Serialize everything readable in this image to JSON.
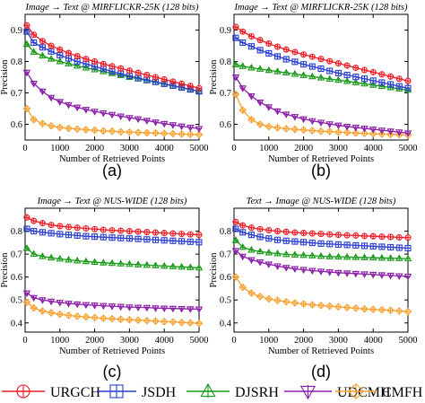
{
  "colors": {
    "URGCH": "#ee1c25",
    "JSDH": "#2b3fd1",
    "DJSRH": "#1a9a1a",
    "UDCMH": "#8b1fa8",
    "CMFH": "#f7a233"
  },
  "legend": [
    {
      "name": "URGCH",
      "marker": "circle-plus"
    },
    {
      "name": "JSDH",
      "marker": "square-plus"
    },
    {
      "name": "DJSRH",
      "marker": "triangle-plus"
    },
    {
      "name": "UDCMH",
      "marker": "inverted-triangle-plus"
    },
    {
      "name": "CMFH",
      "marker": "diamond-plus"
    }
  ],
  "chart_data": [
    {
      "type": "line",
      "panel": "(a)",
      "title": "Image → Text @ MIRFLICKR-25K (128 bits)",
      "xlabel": "Number of Retrieved Points",
      "ylabel": "Precision",
      "xlim": [
        0,
        5000
      ],
      "ylim": [
        0.55,
        0.95
      ],
      "yticks": [
        0.6,
        0.7,
        0.8,
        0.9
      ],
      "xticks": [
        0,
        1000,
        2000,
        3000,
        4000,
        5000
      ],
      "x": [
        50,
        250,
        500,
        750,
        1000,
        1250,
        1500,
        1750,
        2000,
        2250,
        2500,
        2750,
        3000,
        3250,
        3500,
        3750,
        4000,
        4250,
        4500,
        4750,
        5000
      ],
      "series": [
        {
          "name": "URGCH",
          "values": [
            0.915,
            0.885,
            0.865,
            0.85,
            0.838,
            0.827,
            0.817,
            0.808,
            0.8,
            0.792,
            0.785,
            0.778,
            0.771,
            0.764,
            0.757,
            0.75,
            0.743,
            0.736,
            0.729,
            0.722,
            0.715
          ]
        },
        {
          "name": "JSDH",
          "values": [
            0.895,
            0.86,
            0.845,
            0.832,
            0.82,
            0.81,
            0.8,
            0.792,
            0.784,
            0.776,
            0.768,
            0.761,
            0.754,
            0.747,
            0.741,
            0.735,
            0.729,
            0.723,
            0.717,
            0.711,
            0.705
          ]
        },
        {
          "name": "DJSRH",
          "values": [
            0.855,
            0.83,
            0.818,
            0.808,
            0.8,
            0.793,
            0.786,
            0.78,
            0.774,
            0.768,
            0.762,
            0.756,
            0.75,
            0.745,
            0.739,
            0.734,
            0.728,
            0.722,
            0.717,
            0.711,
            0.705
          ]
        },
        {
          "name": "UDCMH",
          "values": [
            0.765,
            0.73,
            0.705,
            0.685,
            0.672,
            0.662,
            0.654,
            0.647,
            0.641,
            0.636,
            0.631,
            0.626,
            0.621,
            0.617,
            0.612,
            0.607,
            0.602,
            0.598,
            0.594,
            0.59,
            0.586
          ]
        },
        {
          "name": "CMFH",
          "values": [
            0.65,
            0.615,
            0.602,
            0.595,
            0.59,
            0.587,
            0.585,
            0.583,
            0.581,
            0.579,
            0.578,
            0.576,
            0.575,
            0.574,
            0.573,
            0.572,
            0.571,
            0.57,
            0.569,
            0.568,
            0.567
          ]
        }
      ]
    },
    {
      "type": "line",
      "panel": "(b)",
      "title": "Image → Text @ MIRFLICKR-25K (128 bits)",
      "xlabel": "Number of Retrieved Points",
      "ylabel": "Precision",
      "xlim": [
        0,
        5000
      ],
      "ylim": [
        0.55,
        0.95
      ],
      "yticks": [
        0.6,
        0.7,
        0.8,
        0.9
      ],
      "xticks": [
        0,
        1000,
        2000,
        3000,
        4000,
        5000
      ],
      "x": [
        50,
        250,
        500,
        750,
        1000,
        1250,
        1500,
        1750,
        2000,
        2250,
        2500,
        2750,
        3000,
        3250,
        3500,
        3750,
        4000,
        4250,
        4500,
        4750,
        5000
      ],
      "series": [
        {
          "name": "URGCH",
          "values": [
            0.91,
            0.895,
            0.88,
            0.868,
            0.857,
            0.847,
            0.838,
            0.83,
            0.822,
            0.815,
            0.808,
            0.801,
            0.794,
            0.787,
            0.78,
            0.773,
            0.766,
            0.759,
            0.752,
            0.745,
            0.738
          ]
        },
        {
          "name": "JSDH",
          "values": [
            0.875,
            0.86,
            0.848,
            0.836,
            0.826,
            0.816,
            0.807,
            0.799,
            0.791,
            0.784,
            0.777,
            0.77,
            0.763,
            0.757,
            0.751,
            0.745,
            0.739,
            0.733,
            0.727,
            0.721,
            0.715
          ]
        },
        {
          "name": "DJSRH",
          "values": [
            0.79,
            0.785,
            0.78,
            0.776,
            0.772,
            0.768,
            0.764,
            0.76,
            0.756,
            0.752,
            0.748,
            0.744,
            0.741,
            0.737,
            0.733,
            0.729,
            0.725,
            0.721,
            0.717,
            0.713,
            0.709
          ]
        },
        {
          "name": "UDCMH",
          "values": [
            0.75,
            0.715,
            0.69,
            0.67,
            0.655,
            0.642,
            0.632,
            0.624,
            0.617,
            0.611,
            0.606,
            0.601,
            0.597,
            0.593,
            0.59,
            0.587,
            0.584,
            0.581,
            0.578,
            0.575,
            0.572
          ]
        },
        {
          "name": "CMFH",
          "values": [
            0.695,
            0.645,
            0.615,
            0.6,
            0.593,
            0.589,
            0.586,
            0.584,
            0.582,
            0.58,
            0.578,
            0.577,
            0.575,
            0.574,
            0.572,
            0.571,
            0.57,
            0.569,
            0.568,
            0.567,
            0.566
          ]
        }
      ]
    },
    {
      "type": "line",
      "panel": "(c)",
      "title": "Image → Text @ NUS-WIDE (128 bits)",
      "xlabel": "Number of Retrieved Points",
      "ylabel": "Precision",
      "xlim": [
        0,
        5000
      ],
      "ylim": [
        0.36,
        0.9
      ],
      "yticks": [
        0.4,
        0.5,
        0.6,
        0.7,
        0.8
      ],
      "xticks": [
        0,
        1000,
        2000,
        3000,
        4000,
        5000
      ],
      "x": [
        50,
        250,
        500,
        750,
        1000,
        1250,
        1500,
        1750,
        2000,
        2250,
        2500,
        2750,
        3000,
        3250,
        3500,
        3750,
        4000,
        4250,
        4500,
        4750,
        5000
      ],
      "series": [
        {
          "name": "URGCH",
          "values": [
            0.86,
            0.845,
            0.835,
            0.827,
            0.822,
            0.818,
            0.815,
            0.812,
            0.809,
            0.806,
            0.804,
            0.802,
            0.8,
            0.798,
            0.796,
            0.794,
            0.792,
            0.79,
            0.788,
            0.786,
            0.784
          ]
        },
        {
          "name": "JSDH",
          "values": [
            0.81,
            0.8,
            0.795,
            0.791,
            0.787,
            0.784,
            0.781,
            0.778,
            0.776,
            0.774,
            0.772,
            0.77,
            0.768,
            0.766,
            0.764,
            0.762,
            0.76,
            0.758,
            0.756,
            0.754,
            0.752
          ]
        },
        {
          "name": "DJSRH",
          "values": [
            0.725,
            0.7,
            0.69,
            0.684,
            0.679,
            0.675,
            0.671,
            0.668,
            0.665,
            0.662,
            0.66,
            0.658,
            0.656,
            0.654,
            0.652,
            0.65,
            0.648,
            0.646,
            0.644,
            0.642,
            0.64
          ]
        },
        {
          "name": "UDCMH",
          "values": [
            0.53,
            0.51,
            0.5,
            0.494,
            0.489,
            0.485,
            0.482,
            0.479,
            0.477,
            0.475,
            0.473,
            0.471,
            0.469,
            0.468,
            0.467,
            0.465,
            0.464,
            0.463,
            0.462,
            0.461,
            0.46
          ]
        },
        {
          "name": "CMFH",
          "values": [
            0.49,
            0.465,
            0.452,
            0.444,
            0.438,
            0.433,
            0.429,
            0.426,
            0.423,
            0.42,
            0.418,
            0.416,
            0.414,
            0.412,
            0.41,
            0.408,
            0.406,
            0.404,
            0.402,
            0.4,
            0.398
          ]
        }
      ]
    },
    {
      "type": "line",
      "panel": "(d)",
      "title": "Text → Image @ NUS-WIDE (128 bits)",
      "xlabel": "Number of Retrieved Points",
      "ylabel": "Precision",
      "xlim": [
        0,
        5000
      ],
      "ylim": [
        0.36,
        0.9
      ],
      "yticks": [
        0.4,
        0.5,
        0.6,
        0.7,
        0.8
      ],
      "xticks": [
        0,
        1000,
        2000,
        3000,
        4000,
        5000
      ],
      "x": [
        50,
        250,
        500,
        750,
        1000,
        1250,
        1500,
        1750,
        2000,
        2250,
        2500,
        2750,
        3000,
        3250,
        3500,
        3750,
        4000,
        4250,
        4500,
        4750,
        5000
      ],
      "series": [
        {
          "name": "URGCH",
          "values": [
            0.84,
            0.825,
            0.815,
            0.809,
            0.804,
            0.8,
            0.797,
            0.794,
            0.792,
            0.79,
            0.788,
            0.786,
            0.784,
            0.782,
            0.781,
            0.779,
            0.778,
            0.776,
            0.775,
            0.773,
            0.772
          ]
        },
        {
          "name": "JSDH",
          "values": [
            0.81,
            0.795,
            0.784,
            0.775,
            0.768,
            0.762,
            0.758,
            0.755,
            0.752,
            0.749,
            0.746,
            0.744,
            0.742,
            0.74,
            0.738,
            0.736,
            0.734,
            0.732,
            0.73,
            0.728,
            0.726
          ]
        },
        {
          "name": "DJSRH",
          "values": [
            0.76,
            0.73,
            0.718,
            0.711,
            0.706,
            0.702,
            0.699,
            0.697,
            0.695,
            0.693,
            0.691,
            0.689,
            0.688,
            0.687,
            0.686,
            0.685,
            0.684,
            0.683,
            0.682,
            0.681,
            0.68
          ]
        },
        {
          "name": "UDCMH",
          "values": [
            0.715,
            0.69,
            0.675,
            0.665,
            0.656,
            0.648,
            0.641,
            0.636,
            0.632,
            0.628,
            0.625,
            0.622,
            0.619,
            0.617,
            0.615,
            0.613,
            0.611,
            0.609,
            0.607,
            0.605,
            0.603
          ]
        },
        {
          "name": "CMFH",
          "values": [
            0.6,
            0.555,
            0.53,
            0.515,
            0.505,
            0.498,
            0.492,
            0.487,
            0.483,
            0.479,
            0.476,
            0.473,
            0.47,
            0.467,
            0.464,
            0.461,
            0.459,
            0.457,
            0.455,
            0.452,
            0.449
          ]
        }
      ]
    }
  ]
}
